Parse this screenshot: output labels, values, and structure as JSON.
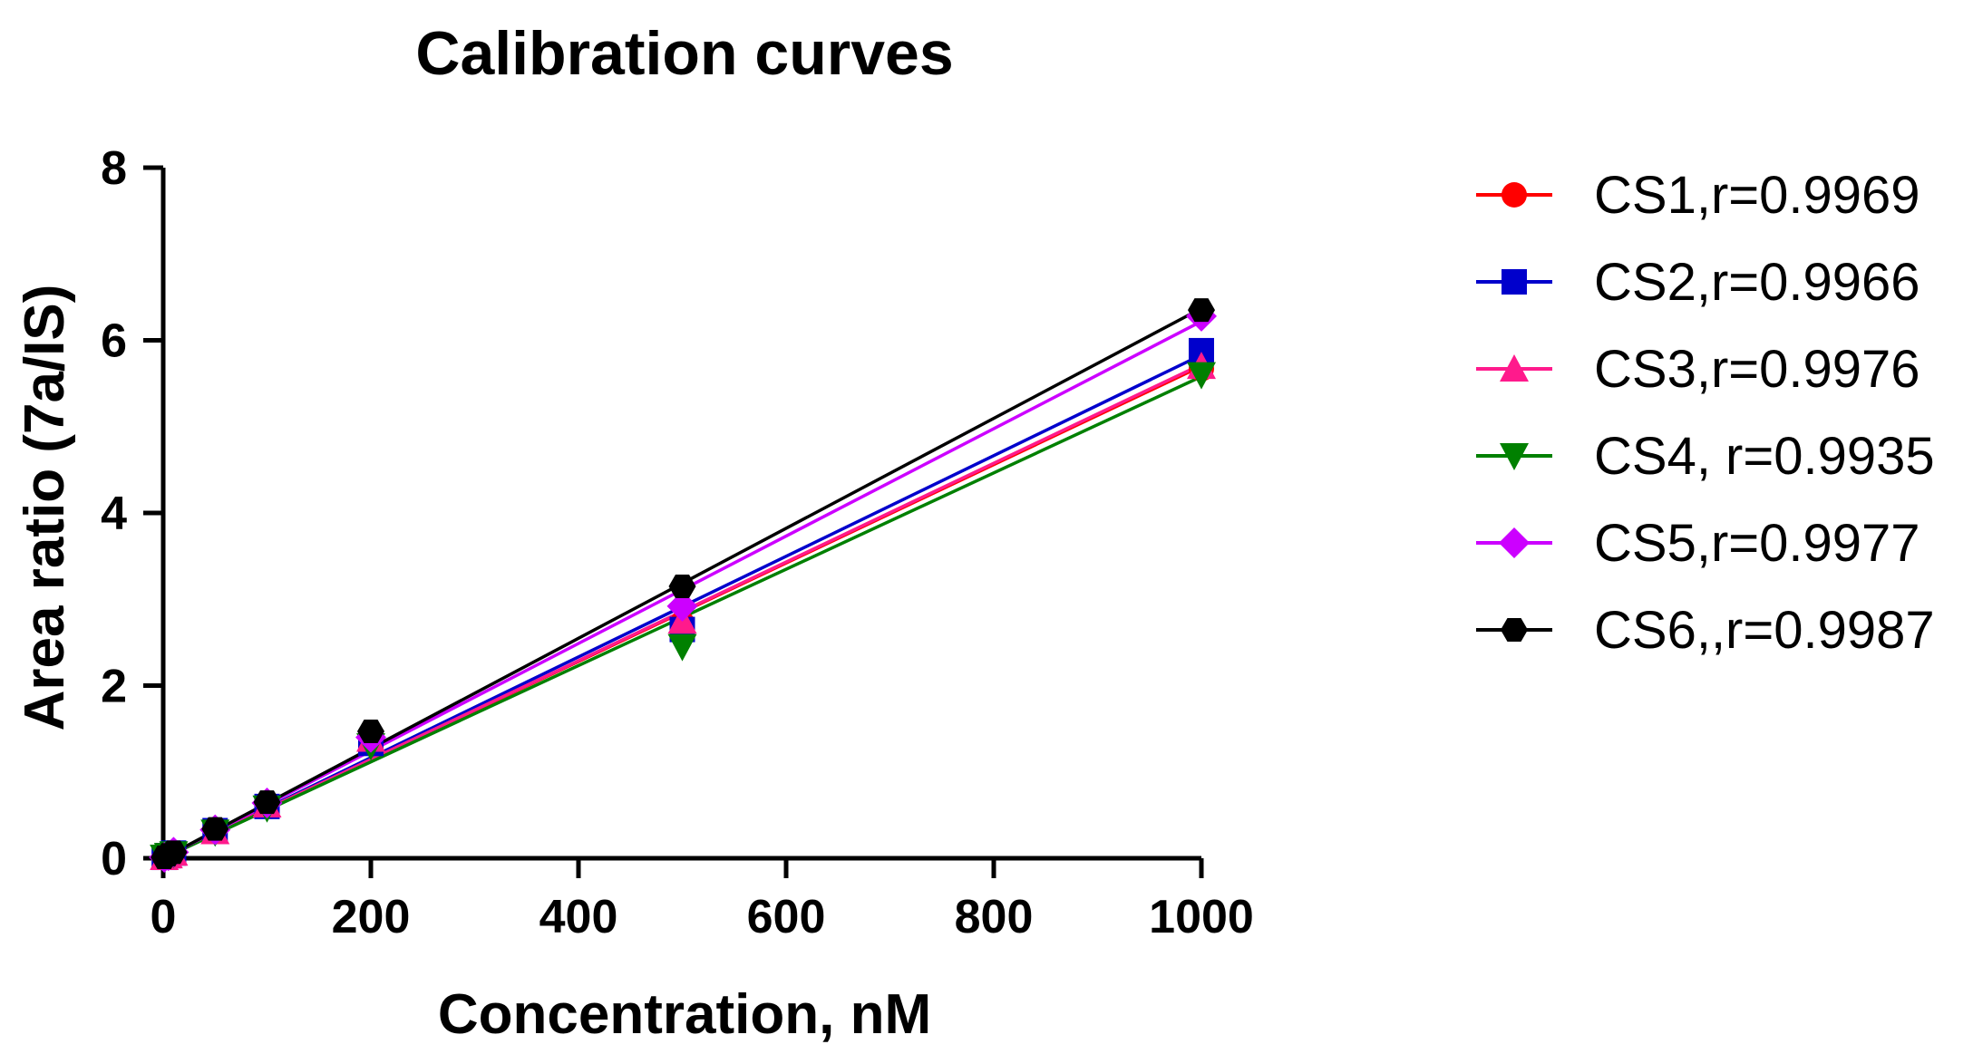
{
  "chart_data": {
    "type": "line",
    "title": "Calibration curves",
    "xlabel": "Concentration, nM",
    "ylabel": "Area ratio (7a/IS)",
    "xlim": [
      0,
      1000
    ],
    "ylim": [
      0,
      8
    ],
    "xticks": [
      "0",
      "200",
      "400",
      "600",
      "800",
      "1000"
    ],
    "yticks": [
      "0",
      "2",
      "4",
      "6",
      "8"
    ],
    "x": [
      1,
      5,
      10,
      50,
      100,
      200,
      500,
      1000
    ],
    "legend_position": "right",
    "series": [
      {
        "name": "CS1,r=0.9969",
        "color": "#ff0000",
        "marker": "circle",
        "values": [
          0.01,
          0.03,
          0.06,
          0.32,
          0.63,
          1.43,
          2.72,
          5.67
        ],
        "fit": [
          0.0,
          5.7
        ]
      },
      {
        "name": "CS2,r=0.9966",
        "color": "#0000cc",
        "marker": "square",
        "values": [
          0.01,
          0.03,
          0.06,
          0.32,
          0.6,
          1.33,
          2.65,
          5.88
        ],
        "fit": [
          0.0,
          5.83
        ]
      },
      {
        "name": "CS3,r=0.9976",
        "color": "#ff1a8c",
        "marker": "triangle-up",
        "values": [
          0.01,
          0.03,
          0.06,
          0.31,
          0.62,
          1.38,
          2.75,
          5.7
        ],
        "fit": [
          0.0,
          5.72
        ]
      },
      {
        "name": "CS4, r=0.9935",
        "color": "#008000",
        "marker": "triangle-down",
        "values": [
          0.01,
          0.03,
          0.05,
          0.3,
          0.58,
          1.3,
          2.45,
          5.6
        ],
        "fit": [
          0.0,
          5.58
        ]
      },
      {
        "name": "CS5,r=0.9977",
        "color": "#cc00ff",
        "marker": "diamond",
        "values": [
          0.01,
          0.03,
          0.07,
          0.33,
          0.64,
          1.4,
          2.92,
          6.28
        ],
        "fit": [
          0.0,
          6.22
        ]
      },
      {
        "name": "CS6,,r=0.9987",
        "color": "#000000",
        "marker": "hexagon",
        "values": [
          0.01,
          0.04,
          0.07,
          0.34,
          0.65,
          1.47,
          3.15,
          6.35
        ],
        "fit": [
          0.0,
          6.37
        ]
      }
    ]
  }
}
